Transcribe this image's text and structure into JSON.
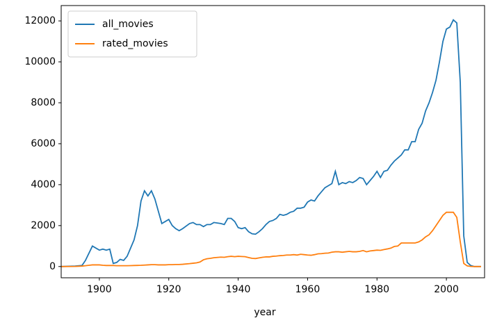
{
  "chart_data": {
    "type": "line",
    "xlabel": "year",
    "x": [
      1889,
      1893,
      1895,
      1896,
      1898,
      1900,
      1901,
      1902,
      1903,
      1904,
      1905,
      1906,
      1907,
      1908,
      1909,
      1910,
      1911,
      1912,
      1913,
      1914,
      1915,
      1916,
      1917,
      1918,
      1919,
      1920,
      1921,
      1922,
      1923,
      1924,
      1926,
      1927,
      1928,
      1929,
      1930,
      1931,
      1932,
      1933,
      1935,
      1936,
      1937,
      1938,
      1939,
      1940,
      1941,
      1942,
      1943,
      1944,
      1945,
      1946,
      1947,
      1948,
      1949,
      1950,
      1951,
      1952,
      1953,
      1954,
      1955,
      1956,
      1957,
      1958,
      1959,
      1960,
      1961,
      1962,
      1963,
      1964,
      1965,
      1966,
      1967,
      1968,
      1969,
      1970,
      1971,
      1972,
      1973,
      1974,
      1975,
      1976,
      1977,
      1978,
      1979,
      1980,
      1981,
      1982,
      1983,
      1984,
      1985,
      1986,
      1987,
      1988,
      1989,
      1990,
      1991,
      1992,
      1993,
      1994,
      1995,
      1996,
      1997,
      1998,
      1999,
      2000,
      2001,
      2002,
      2003,
      2004,
      2005,
      2006,
      2007,
      2008,
      2010
    ],
    "series": [
      {
        "name": "all_movies",
        "color": "#1f77b4",
        "values": [
          0,
          20,
          50,
          300,
          1000,
          800,
          850,
          800,
          850,
          150,
          200,
          350,
          300,
          500,
          900,
          1300,
          2000,
          3200,
          3700,
          3450,
          3700,
          3300,
          2700,
          2100,
          2200,
          2300,
          2000,
          1850,
          1750,
          1850,
          2100,
          2150,
          2050,
          2050,
          1950,
          2050,
          2050,
          2150,
          2100,
          2050,
          2350,
          2350,
          2200,
          1900,
          1850,
          1900,
          1700,
          1600,
          1580,
          1700,
          1850,
          2050,
          2200,
          2250,
          2350,
          2550,
          2500,
          2550,
          2650,
          2700,
          2850,
          2850,
          2900,
          3150,
          3250,
          3200,
          3450,
          3650,
          3850,
          3950,
          4050,
          4650,
          4000,
          4100,
          4050,
          4150,
          4100,
          4200,
          4350,
          4300,
          4000,
          4200,
          4400,
          4650,
          4350,
          4650,
          4700,
          4950,
          5150,
          5300,
          5450,
          5700,
          5700,
          6100,
          6100,
          6700,
          7000,
          7600,
          8000,
          8500,
          9100,
          10000,
          11000,
          11600,
          11700,
          12050,
          11900,
          9000,
          1500,
          200,
          50,
          0,
          0
        ]
      },
      {
        "name": "rated_movies",
        "color": "#ff7f0e",
        "values": [
          0,
          5,
          20,
          40,
          80,
          80,
          60,
          50,
          50,
          50,
          40,
          40,
          40,
          40,
          45,
          50,
          55,
          60,
          70,
          80,
          90,
          90,
          80,
          80,
          80,
          90,
          90,
          100,
          100,
          110,
          140,
          160,
          180,
          220,
          330,
          380,
          400,
          430,
          460,
          450,
          480,
          500,
          480,
          500,
          490,
          480,
          440,
          400,
          390,
          420,
          450,
          470,
          470,
          500,
          510,
          530,
          540,
          560,
          560,
          580,
          560,
          600,
          580,
          560,
          550,
          580,
          620,
          630,
          650,
          660,
          700,
          720,
          720,
          700,
          720,
          740,
          720,
          720,
          740,
          780,
          720,
          760,
          780,
          800,
          790,
          830,
          860,
          900,
          980,
          1000,
          1150,
          1150,
          1150,
          1150,
          1150,
          1200,
          1300,
          1450,
          1550,
          1750,
          2000,
          2250,
          2500,
          2650,
          2650,
          2650,
          2400,
          1200,
          150,
          30,
          5,
          0,
          0
        ]
      }
    ],
    "xlim": [
      1889,
      2011
    ],
    "xticks": [
      1900,
      1920,
      1940,
      1960,
      1980,
      2000
    ],
    "ylim": [
      -550,
      12750
    ],
    "yticks": [
      0,
      2000,
      4000,
      6000,
      8000,
      10000,
      12000
    ],
    "legend": "upper left"
  }
}
